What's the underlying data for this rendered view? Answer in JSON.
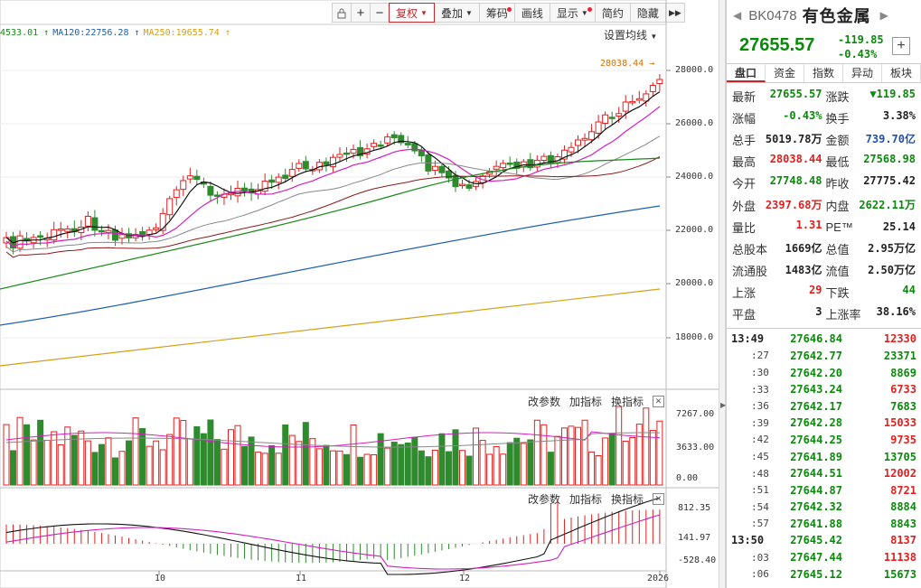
{
  "toolbar": {
    "items": [
      {
        "label": "复权",
        "active": true,
        "caret": true
      },
      {
        "label": "叠加",
        "caret": true
      },
      {
        "label": "筹码",
        "dot": true
      },
      {
        "label": "画线"
      },
      {
        "label": "显示",
        "caret": true,
        "dot": true
      },
      {
        "label": "简约"
      },
      {
        "label": "隐藏"
      }
    ],
    "icons": [
      "lock-icon",
      "zoom-in-icon",
      "zoom-out-icon",
      "expand-right-icon"
    ]
  },
  "ma_legend": [
    {
      "text": "4533.01",
      "color": "#1a8a1a"
    },
    {
      "text": "MA120:22756.28",
      "color": "#1f5fb0"
    },
    {
      "text": "MA250:19655.74",
      "color": "#d4a017"
    }
  ],
  "ma_setting_label": "设置均线",
  "price_axis": [
    "28000.0",
    "26000.0",
    "24000.0",
    "22000.0",
    "20000.0",
    "18000.0"
  ],
  "high_marker": "28038.44",
  "volume_axis": [
    "7267.00",
    "3633.00",
    "0.00"
  ],
  "macd_axis": [
    "812.35",
    "141.97",
    "-528.40"
  ],
  "sub_tools": [
    "改参数",
    "加指标",
    "换指标"
  ],
  "x_labels": [
    "10",
    "11",
    "12",
    "2026"
  ],
  "stock": {
    "code": "BK0478",
    "name": "有色金属",
    "price": "27655.57",
    "change": "-119.85",
    "change_pct": "-0.43%"
  },
  "tabs": [
    "盘口",
    "资金",
    "指数",
    "异动",
    "板块"
  ],
  "quotes": [
    [
      {
        "label": "最新",
        "value": "27655.57",
        "cls": "green"
      },
      {
        "label": "涨跌",
        "value": "▼119.85",
        "cls": "green"
      }
    ],
    [
      {
        "label": "涨幅",
        "value": "-0.43%",
        "cls": "green"
      },
      {
        "label": "换手",
        "value": "3.38%",
        "cls": "dark"
      }
    ],
    [
      {
        "label": "总手",
        "value": "5019.78万",
        "cls": "dark"
      },
      {
        "label": "金额",
        "value": "739.70亿",
        "cls": "blue"
      }
    ],
    [
      {
        "label": "最高",
        "value": "28038.44",
        "cls": "red"
      },
      {
        "label": "最低",
        "value": "27568.98",
        "cls": "green"
      }
    ],
    [
      {
        "label": "今开",
        "value": "27748.48",
        "cls": "green"
      },
      {
        "label": "昨收",
        "value": "27775.42",
        "cls": "dark"
      }
    ],
    [
      {
        "label": "外盘",
        "value": "2397.68万",
        "cls": "red"
      },
      {
        "label": "内盘",
        "value": "2622.11万",
        "cls": "green"
      }
    ],
    [
      {
        "label": "量比",
        "value": "1.31",
        "cls": "red"
      },
      {
        "label": "PE™",
        "value": "25.14",
        "cls": "dark"
      }
    ],
    [
      {
        "label": "总股本",
        "value": "1669亿",
        "cls": "dark"
      },
      {
        "label": "总值",
        "value": "2.95万亿",
        "cls": "dark"
      }
    ],
    [
      {
        "label": "流通股",
        "value": "1483亿",
        "cls": "dark"
      },
      {
        "label": "流值",
        "value": "2.50万亿",
        "cls": "dark"
      }
    ],
    [
      {
        "label": "上涨",
        "value": "29",
        "cls": "red"
      },
      {
        "label": "下跌",
        "value": "44",
        "cls": "green"
      }
    ],
    [
      {
        "label": "平盘",
        "value": "3",
        "cls": "dark"
      },
      {
        "label": "上涨率",
        "value": "38.16%",
        "cls": "dark"
      }
    ]
  ],
  "trades": [
    {
      "time": "13:49",
      "full": true,
      "price": "27646.84",
      "vol": "12330",
      "cls": "red"
    },
    {
      "time": ":27",
      "price": "27642.77",
      "vol": "23371",
      "cls": "green"
    },
    {
      "time": ":30",
      "price": "27642.20",
      "vol": "8869",
      "cls": "green"
    },
    {
      "time": ":33",
      "price": "27643.24",
      "vol": "6733",
      "cls": "red"
    },
    {
      "time": ":36",
      "price": "27642.17",
      "vol": "7683",
      "cls": "green"
    },
    {
      "time": ":39",
      "price": "27642.28",
      "vol": "15033",
      "cls": "red"
    },
    {
      "time": ":42",
      "price": "27644.25",
      "vol": "9735",
      "cls": "red"
    },
    {
      "time": ":45",
      "price": "27641.89",
      "vol": "13705",
      "cls": "green"
    },
    {
      "time": ":48",
      "price": "27644.51",
      "vol": "12002",
      "cls": "red"
    },
    {
      "time": ":51",
      "price": "27644.87",
      "vol": "8721",
      "cls": "red"
    },
    {
      "time": ":54",
      "price": "27642.32",
      "vol": "8884",
      "cls": "green"
    },
    {
      "time": ":57",
      "price": "27641.88",
      "vol": "8843",
      "cls": "green"
    },
    {
      "time": "13:50",
      "full": true,
      "price": "27645.42",
      "vol": "8137",
      "cls": "red"
    },
    {
      "time": ":03",
      "price": "27647.44",
      "vol": "11138",
      "cls": "red"
    },
    {
      "time": ":06",
      "price": "27645.12",
      "vol": "15673",
      "cls": "green"
    }
  ]
}
